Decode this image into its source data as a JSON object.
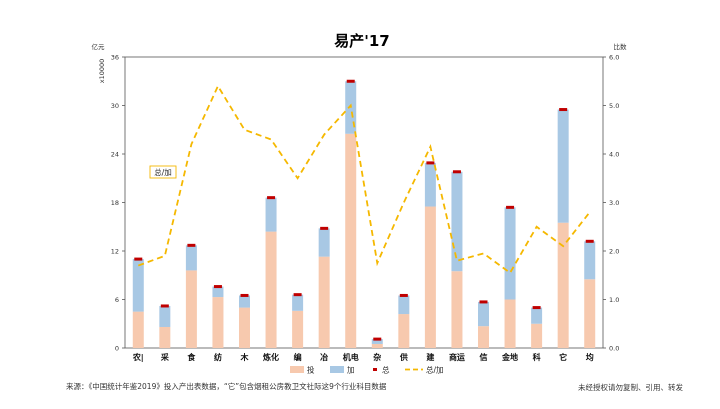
{
  "chart_data": {
    "type": "bar",
    "title": "易产'17",
    "y_left_label": "亿元",
    "y_left_multiplier": "x10000",
    "y_right_label": "比数",
    "ylim_left": [
      0,
      36
    ],
    "yticks_left": [
      0,
      6,
      12,
      18,
      24,
      30,
      36
    ],
    "ylim_right": [
      0,
      6
    ],
    "yticks_right": [
      "0.0",
      "1.0",
      "2.0",
      "3.0",
      "4.0",
      "5.0",
      "6.0"
    ],
    "categories": [
      "农|",
      "采",
      "食",
      "纺",
      "木",
      "炼化",
      "编",
      "冶",
      "机电",
      "杂",
      "供",
      "建",
      "商运",
      "信",
      "金地",
      "科",
      "它",
      "均"
    ],
    "series": [
      {
        "name": "投",
        "type": "stacked-bar",
        "color": "#f7c9ae",
        "values": [
          4.5,
          2.6,
          9.6,
          6.3,
          5.0,
          14.4,
          4.6,
          11.3,
          26.5,
          0.5,
          4.2,
          17.5,
          9.5,
          2.7,
          6.0,
          3.0,
          15.5,
          8.5
        ]
      },
      {
        "name": "加",
        "type": "stacked-bar",
        "color": "#a8c8e4",
        "values": [
          6.5,
          2.6,
          3.1,
          1.3,
          1.5,
          4.2,
          2.0,
          3.5,
          6.5,
          0.6,
          2.3,
          5.4,
          12.3,
          3.0,
          11.4,
          2.0,
          14.0,
          4.7
        ]
      },
      {
        "name": "总",
        "type": "marker",
        "color": "#c00000",
        "values": [
          11.0,
          5.2,
          12.7,
          7.6,
          6.5,
          18.6,
          6.6,
          14.8,
          33.0,
          1.1,
          6.5,
          22.9,
          21.8,
          5.7,
          17.4,
          5.0,
          29.5,
          13.2
        ]
      },
      {
        "name": "总/加",
        "type": "line",
        "color": "#f5b800",
        "axis": "right",
        "values": [
          1.7,
          1.9,
          4.2,
          5.4,
          4.5,
          4.3,
          3.5,
          4.4,
          5.0,
          1.75,
          3.0,
          4.15,
          1.8,
          1.95,
          1.55,
          2.5,
          2.1,
          2.8
        ]
      }
    ],
    "annotation": "总/加",
    "legend": [
      "投",
      "加",
      "总",
      "总/加"
    ],
    "legend_position": "bottom",
    "grid": false
  },
  "footer": {
    "source": "来源：《中国统计年鉴2019》投入产出表数据，“它”包含烟租公房教卫文社际这9个行业科目数据",
    "note": "未经授权请勿复制、引用、转发"
  }
}
